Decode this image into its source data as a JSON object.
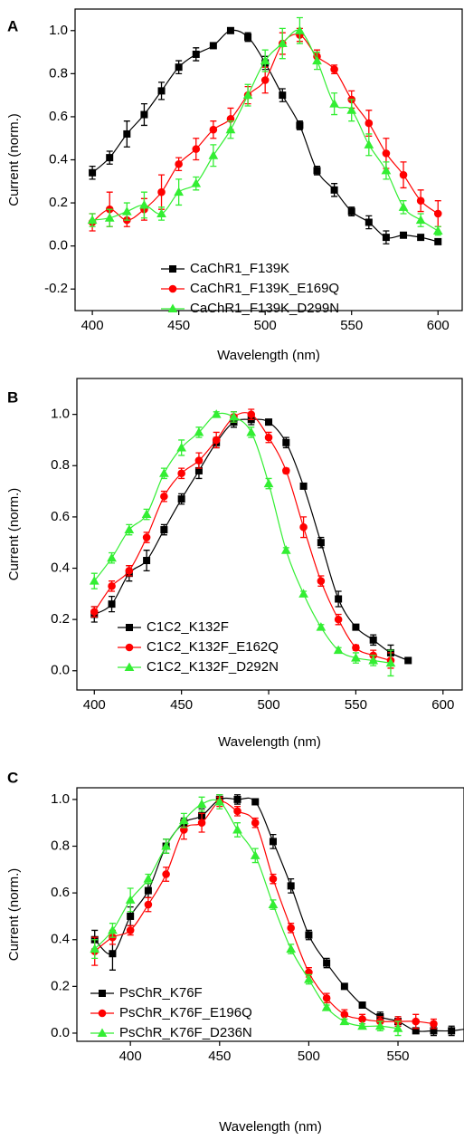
{
  "chart_data": [
    {
      "type": "line",
      "panel_label": "A",
      "xlabel": "Wavelength (nm)",
      "ylabel": "Current (norm.)",
      "xlim": [
        390,
        614
      ],
      "ylim": [
        -0.3,
        1.1
      ],
      "xticks": [
        400,
        450,
        500,
        550,
        600
      ],
      "yticks": [
        -0.2,
        {
          "value": 0,
          "label": "0.0"
        },
        0.2,
        0.4,
        0.6,
        0.8,
        {
          "value": 1,
          "label": "1.0"
        }
      ],
      "legend": "lower left",
      "x": [
        400,
        410,
        420,
        430,
        440,
        450,
        460,
        470,
        480,
        490,
        500,
        510,
        520,
        530,
        540,
        550,
        560,
        570,
        580,
        590,
        600
      ],
      "series": [
        {
          "name": "CaChR1_F139K",
          "color": "#000000",
          "marker": "square",
          "values": [
            0.34,
            0.41,
            0.52,
            0.61,
            0.72,
            0.83,
            0.89,
            0.93,
            1.0,
            0.97,
            0.85,
            0.7,
            0.56,
            0.35,
            0.26,
            0.16,
            0.11,
            0.04,
            0.05,
            0.04,
            0.02
          ],
          "errors": [
            0.03,
            0.03,
            0.06,
            0.05,
            0.04,
            0.03,
            0.03,
            0.01,
            0.01,
            0.02,
            0.03,
            0.03,
            0.02,
            0.02,
            0.03,
            0.02,
            0.03,
            0.03,
            0.01,
            0.01,
            0.01
          ]
        },
        {
          "name": "CaChR1_F139K_E169Q",
          "color": "#ff0000",
          "marker": "circle",
          "values": [
            0.11,
            0.17,
            0.12,
            0.17,
            0.25,
            0.38,
            0.45,
            0.54,
            0.59,
            0.7,
            0.77,
            0.94,
            0.98,
            0.88,
            0.82,
            0.68,
            0.57,
            0.43,
            0.33,
            0.21,
            0.15
          ],
          "errors": [
            0.04,
            0.08,
            0.03,
            0.05,
            0.08,
            0.03,
            0.05,
            0.04,
            0.05,
            0.04,
            0.06,
            0.05,
            0.03,
            0.03,
            0.02,
            0.04,
            0.06,
            0.07,
            0.06,
            0.05,
            0.06
          ]
        },
        {
          "name": "CaChR1_F139K_D299N",
          "color": "#33ee33",
          "marker": "triangle",
          "values": [
            0.12,
            0.13,
            0.16,
            0.19,
            0.15,
            0.25,
            0.29,
            0.42,
            0.54,
            0.7,
            0.86,
            0.94,
            1.0,
            0.86,
            0.66,
            0.63,
            0.47,
            0.35,
            0.18,
            0.12,
            0.07
          ],
          "errors": [
            0.03,
            0.04,
            0.04,
            0.06,
            0.03,
            0.06,
            0.03,
            0.05,
            0.04,
            0.05,
            0.05,
            0.07,
            0.06,
            0.04,
            0.05,
            0.05,
            0.05,
            0.04,
            0.03,
            0.03,
            0.02
          ]
        }
      ]
    },
    {
      "type": "line",
      "panel_label": "B",
      "xlabel": "Wavelength (nm)",
      "ylabel": "Current (norm.)",
      "xlim": [
        390,
        611
      ],
      "ylim": [
        -0.075,
        1.14
      ],
      "xticks": [
        400,
        450,
        500,
        550,
        600
      ],
      "yticks": [
        {
          "value": 0,
          "label": "0.0"
        },
        0.2,
        0.4,
        0.6,
        0.8,
        {
          "value": 1,
          "label": "1.0"
        }
      ],
      "legend": "lower left",
      "x": [
        400,
        410,
        420,
        430,
        440,
        450,
        460,
        470,
        480,
        490,
        500,
        510,
        520,
        530,
        540,
        550,
        560,
        570,
        580
      ],
      "series": [
        {
          "name": "C1C2_K132F",
          "color": "#000000",
          "marker": "square",
          "values": [
            0.22,
            0.26,
            0.38,
            0.43,
            0.55,
            0.67,
            0.78,
            0.89,
            0.97,
            0.98,
            0.97,
            0.89,
            0.72,
            0.5,
            0.28,
            0.17,
            0.12,
            0.07,
            0.04
          ],
          "errors": [
            0.03,
            0.03,
            0.03,
            0.04,
            0.02,
            0.02,
            0.03,
            0.02,
            0.02,
            0.02,
            0.01,
            0.02,
            0.01,
            0.02,
            0.03,
            0.01,
            0.02,
            0.03,
            0.01
          ]
        },
        {
          "name": "C1C2_K132F_E162Q",
          "color": "#ff0000",
          "marker": "circle",
          "values": [
            0.23,
            0.33,
            0.39,
            0.52,
            0.68,
            0.77,
            0.82,
            0.9,
            0.99,
            1.0,
            0.91,
            0.78,
            0.56,
            0.35,
            0.2,
            0.09,
            0.06,
            0.04,
            null
          ],
          "errors": [
            0.02,
            0.02,
            0.02,
            0.02,
            0.02,
            0.02,
            0.03,
            0.03,
            0.02,
            0.02,
            0.02,
            0.01,
            0.04,
            0.02,
            0.02,
            0.01,
            0.02,
            0.03,
            null
          ]
        },
        {
          "name": "C1C2_K132F_D292N",
          "color": "#33ee33",
          "marker": "triangle",
          "values": [
            0.35,
            0.44,
            0.55,
            0.61,
            0.77,
            0.87,
            0.93,
            1.0,
            0.99,
            0.93,
            0.73,
            0.47,
            0.3,
            0.17,
            0.08,
            0.05,
            0.04,
            0.03,
            null
          ],
          "errors": [
            0.03,
            0.02,
            0.02,
            0.02,
            0.02,
            0.03,
            0.02,
            0.01,
            0.02,
            0.02,
            0.02,
            0.01,
            0.01,
            0.01,
            0.01,
            0.02,
            0.02,
            0.05,
            null
          ]
        }
      ]
    },
    {
      "type": "line",
      "panel_label": "C",
      "xlabel": "Wavelength (nm)",
      "ylabel": "Current (norm.)",
      "xlim": [
        370,
        587
      ],
      "ylim": [
        -0.035,
        1.05
      ],
      "xticks": [
        400,
        450,
        500,
        550
      ],
      "yticks": [
        {
          "value": 0,
          "label": "0.0"
        },
        0.2,
        0.4,
        0.6,
        0.8,
        {
          "value": 1,
          "label": "1.0"
        }
      ],
      "legend": "lower left",
      "x": [
        380,
        390,
        400,
        410,
        420,
        430,
        440,
        450,
        460,
        470,
        480,
        490,
        500,
        510,
        520,
        530,
        540,
        550,
        560,
        570,
        580,
        590
      ],
      "series": [
        {
          "name": "PsChR_K76F",
          "color": "#000000",
          "marker": "square",
          "values": [
            0.4,
            0.34,
            0.5,
            0.61,
            0.8,
            0.9,
            0.93,
            1.0,
            1.0,
            0.99,
            0.82,
            0.63,
            0.42,
            0.3,
            0.2,
            0.12,
            0.07,
            0.05,
            0.01,
            0.01,
            0.01,
            0.02
          ],
          "errors": [
            0.04,
            0.07,
            0.04,
            0.03,
            0.03,
            0.02,
            0.03,
            0.02,
            0.02,
            0.01,
            0.03,
            0.03,
            0.02,
            0.02,
            0.01,
            0.01,
            0.02,
            0.02,
            0.01,
            0.02,
            0.02,
            0.03
          ]
        },
        {
          "name": "PsChR_K76F_E196Q",
          "color": "#ff0000",
          "marker": "circle",
          "values": [
            0.35,
            0.41,
            0.44,
            0.55,
            0.68,
            0.87,
            0.9,
            0.99,
            0.95,
            0.9,
            0.66,
            0.45,
            0.26,
            0.15,
            0.08,
            0.06,
            0.05,
            0.05,
            0.05,
            0.04,
            null,
            null
          ],
          "errors": [
            0.06,
            0.03,
            0.02,
            0.03,
            0.03,
            0.04,
            0.04,
            0.02,
            0.02,
            0.02,
            0.02,
            0.02,
            0.02,
            0.02,
            0.02,
            0.02,
            0.02,
            0.02,
            0.03,
            0.02,
            null,
            null
          ]
        },
        {
          "name": "PsChR_K76F_D236N",
          "color": "#33ee33",
          "marker": "triangle",
          "values": [
            0.36,
            0.44,
            0.57,
            0.66,
            0.8,
            0.91,
            0.98,
            0.99,
            0.87,
            0.76,
            0.55,
            0.36,
            0.23,
            0.11,
            0.05,
            0.03,
            0.03,
            0.02,
            null,
            null,
            null,
            null
          ],
          "errors": [
            0.04,
            0.03,
            0.05,
            0.02,
            0.03,
            0.03,
            0.03,
            0.03,
            0.03,
            0.03,
            0.02,
            0.02,
            0.02,
            0.01,
            0.01,
            0.01,
            0.02,
            0.03,
            null,
            null,
            null,
            null
          ]
        }
      ]
    }
  ]
}
